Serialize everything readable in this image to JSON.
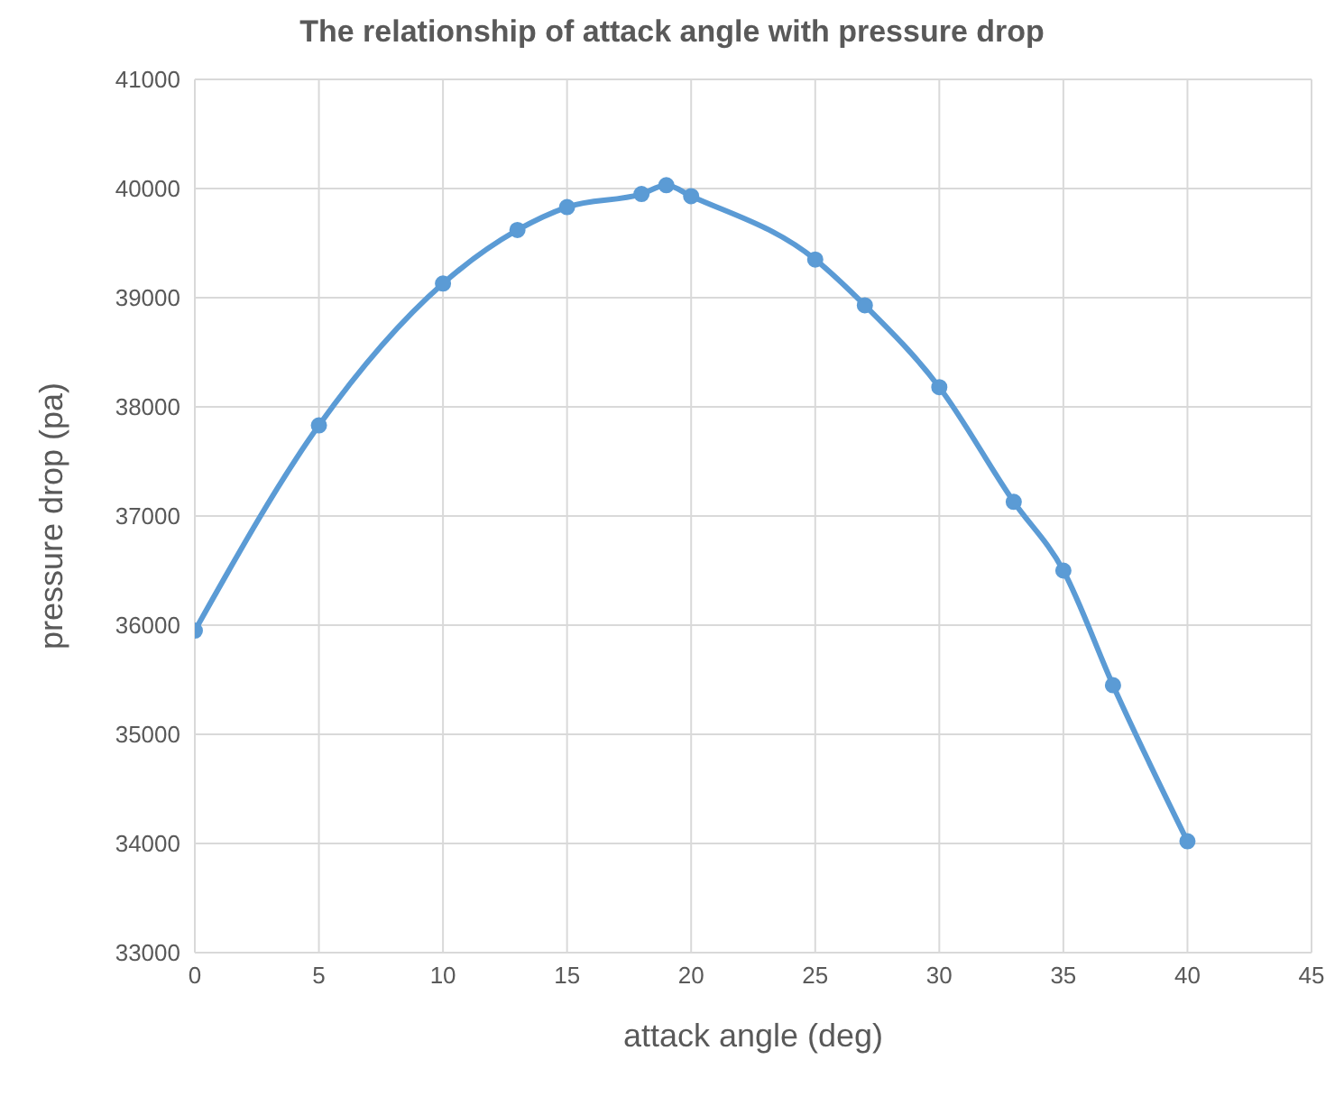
{
  "chart_data": {
    "type": "line",
    "title": "The relationship of attack angle with pressure drop",
    "xlabel": "attack angle (deg)",
    "ylabel": "pressure drop (pa)",
    "x": [
      0,
      5,
      10,
      13,
      15,
      18,
      19,
      20,
      25,
      27,
      30,
      33,
      35,
      37,
      40
    ],
    "series": [
      {
        "color": "#5b9bd5",
        "values": [
          35950,
          37830,
          39130,
          39620,
          39830,
          39950,
          40030,
          39930,
          39350,
          38930,
          38180,
          37130,
          36500,
          35450,
          34020
        ]
      }
    ],
    "xlim": [
      0,
      45
    ],
    "xticks": [
      0,
      5,
      10,
      15,
      20,
      25,
      30,
      35,
      40,
      45
    ],
    "ylim": [
      33000,
      41000
    ],
    "yticks": [
      33000,
      34000,
      35000,
      36000,
      37000,
      38000,
      39000,
      40000,
      41000
    ],
    "grid": true,
    "marker": "circle",
    "line_style": "solid",
    "legend": false
  }
}
